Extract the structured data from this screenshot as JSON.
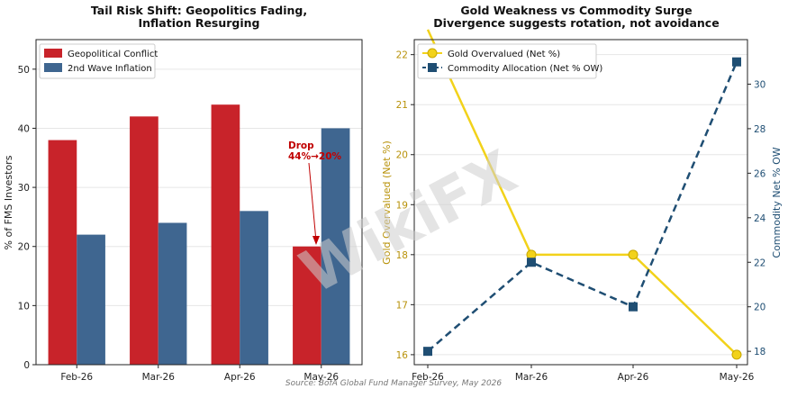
{
  "left_chart": {
    "title_line1": "Tail Risk Shift: Geopolitics Fading,",
    "title_line2": "Inflation Resurging",
    "ylabel": "% of FMS Investors",
    "annotation_line1": "Drop",
    "annotation_line2": "44%→20%",
    "colors": {
      "series1": "#c8232a",
      "series2": "#3f6690",
      "annotation": "#c00000"
    }
  },
  "right_chart": {
    "title_line1": "Gold Weakness vs Commodity Surge",
    "title_line2": "Divergence suggests rotation, not avoidance",
    "ylabel_left": "Gold Overvalued (Net %)",
    "ylabel_right": "Commodity Net % OW",
    "colors": {
      "gold": "#f2d21a",
      "gold_axis": "#b8920a",
      "commodity": "#1f4e73"
    }
  },
  "source": "Source: BofA Global Fund Manager Survey, May 2026",
  "watermark": "WikiFX",
  "chart_data": [
    {
      "type": "bar",
      "title": "Tail Risk Shift: Geopolitics Fading, Inflation Resurging",
      "xlabel": "",
      "ylabel": "% of FMS Investors",
      "categories": [
        "Feb-26",
        "Mar-26",
        "Apr-26",
        "May-26"
      ],
      "series": [
        {
          "name": "Geopolitical Conflict",
          "values": [
            38,
            42,
            44,
            20
          ]
        },
        {
          "name": "2nd Wave Inflation",
          "values": [
            22,
            24,
            26,
            40
          ]
        }
      ],
      "ylim": [
        0,
        55
      ],
      "yticks": [
        0,
        10,
        20,
        30,
        40,
        50
      ],
      "legend": "top-left",
      "grid": true
    },
    {
      "type": "line",
      "title": "Gold Weakness vs Commodity Surge — Divergence suggests rotation, not avoidance",
      "x": [
        "Feb-26",
        "Mar-26",
        "Apr-26",
        "May-26"
      ],
      "series": [
        {
          "name": "Gold Overvalued (Net %)",
          "axis": "left",
          "values": [
            22.5,
            18,
            18,
            16
          ]
        },
        {
          "name": "Commodity Allocation (Net % OW)",
          "axis": "right",
          "values": [
            18,
            22,
            20,
            31
          ]
        }
      ],
      "ylim_left": [
        15.8,
        22.3
      ],
      "yticks_left": [
        16,
        17,
        18,
        19,
        20,
        21,
        22
      ],
      "ylim_right": [
        17.4,
        32.0
      ],
      "yticks_right": [
        18,
        20,
        22,
        24,
        26,
        28,
        30
      ],
      "legend": "top-left",
      "grid": true
    }
  ]
}
